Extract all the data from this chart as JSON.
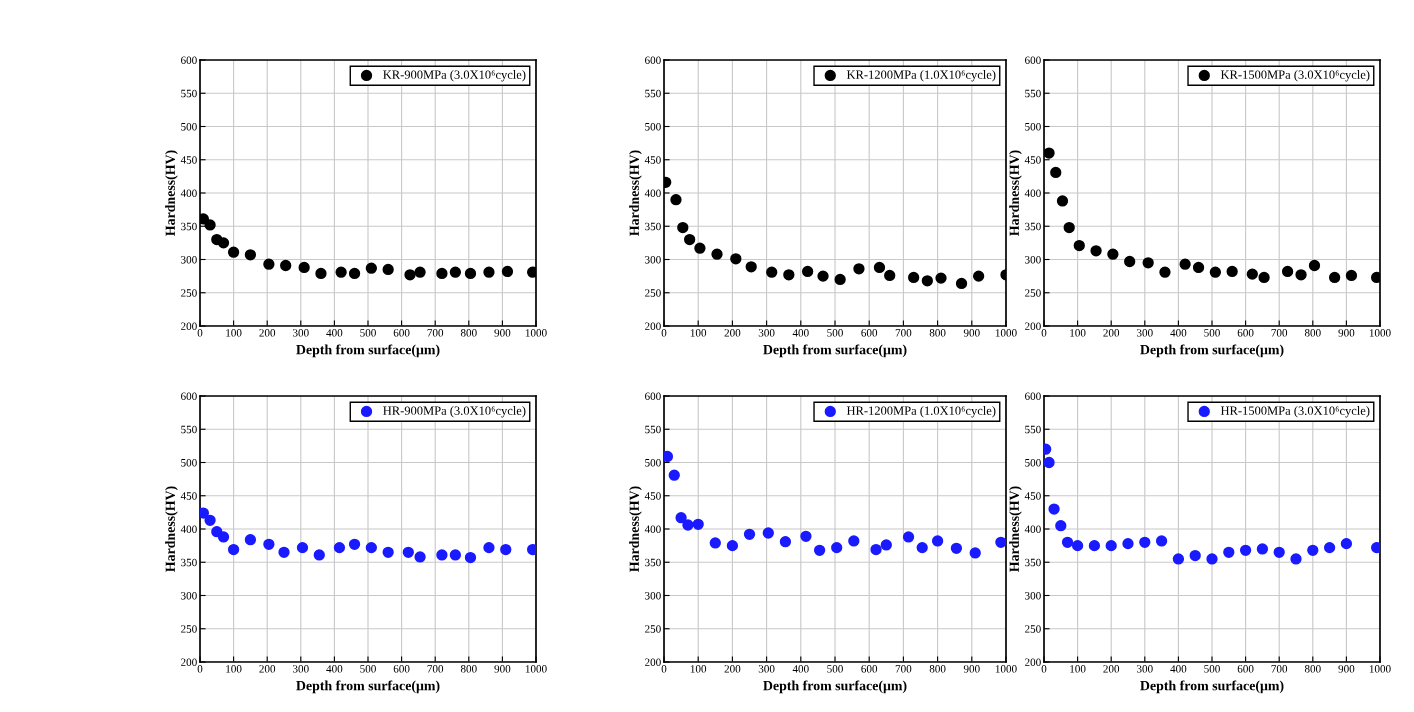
{
  "chart_data": [
    {
      "type": "scatter",
      "xlabel": "Depth from surface(μm)",
      "ylabel": "Hardness(HV)",
      "xlim": [
        0,
        1000
      ],
      "xticks": [
        0,
        100,
        200,
        300,
        400,
        500,
        600,
        700,
        800,
        900,
        1000
      ],
      "ylim": [
        200,
        600
      ],
      "yticks": [
        200,
        250,
        300,
        350,
        400,
        450,
        500,
        550,
        600
      ],
      "grid": true,
      "legend": "top right",
      "marker": "circle",
      "series": [
        {
          "name": "KR-900MPa (3.0X10⁶cycle)",
          "color": "#000000",
          "x": [
            10,
            30,
            50,
            70,
            100,
            150,
            205,
            255,
            310,
            360,
            420,
            460,
            510,
            560,
            625,
            655,
            720,
            760,
            805,
            860,
            915,
            990
          ],
          "values": [
            361,
            352,
            330,
            325,
            311,
            307,
            293,
            291,
            288,
            279,
            281,
            279,
            287,
            285,
            277,
            281,
            279,
            281,
            279,
            281,
            282,
            281
          ]
        }
      ]
    },
    {
      "type": "scatter",
      "xlabel": "Depth from surface(μm)",
      "ylabel": "Hardness(HV)",
      "xlim": [
        0,
        1000
      ],
      "xticks": [
        0,
        100,
        200,
        300,
        400,
        500,
        600,
        700,
        800,
        900,
        1000
      ],
      "ylim": [
        200,
        600
      ],
      "yticks": [
        200,
        250,
        300,
        350,
        400,
        450,
        500,
        550,
        600
      ],
      "grid": true,
      "legend": "top right",
      "marker": "circle",
      "series": [
        {
          "name": "KR-1200MPa (1.0X10⁶cycle)",
          "color": "#000000",
          "x": [
            5,
            35,
            55,
            75,
            105,
            155,
            210,
            255,
            315,
            365,
            420,
            465,
            515,
            570,
            630,
            660,
            730,
            770,
            810,
            870,
            920,
            1000
          ],
          "values": [
            416,
            390,
            348,
            330,
            317,
            308,
            301,
            289,
            281,
            277,
            282,
            275,
            270,
            286,
            288,
            276,
            273,
            268,
            272,
            264,
            275,
            277
          ]
        }
      ]
    },
    {
      "type": "scatter",
      "xlabel": "Depth from surface(μm)",
      "ylabel": "Hardness(HV)",
      "xlim": [
        0,
        1000
      ],
      "xticks": [
        0,
        100,
        200,
        300,
        400,
        500,
        600,
        700,
        800,
        900,
        1000
      ],
      "ylim": [
        200,
        600
      ],
      "yticks": [
        200,
        250,
        300,
        350,
        400,
        450,
        500,
        550,
        600
      ],
      "grid": true,
      "legend": "top right",
      "marker": "circle",
      "series": [
        {
          "name": "KR-1500MPa (3.0X10⁶cycle)",
          "color": "#000000",
          "x": [
            15,
            35,
            55,
            75,
            105,
            155,
            205,
            255,
            310,
            360,
            420,
            460,
            510,
            560,
            620,
            655,
            725,
            765,
            805,
            865,
            915,
            990
          ],
          "values": [
            460,
            431,
            388,
            348,
            321,
            313,
            308,
            297,
            295,
            281,
            293,
            288,
            281,
            282,
            278,
            273,
            282,
            277,
            291,
            273,
            276,
            273
          ]
        }
      ]
    },
    {
      "type": "scatter",
      "xlabel": "Depth from surface(μm)",
      "ylabel": "Hardness(HV)",
      "xlim": [
        0,
        1000
      ],
      "xticks": [
        0,
        100,
        200,
        300,
        400,
        500,
        600,
        700,
        800,
        900,
        1000
      ],
      "ylim": [
        200,
        600
      ],
      "yticks": [
        200,
        250,
        300,
        350,
        400,
        450,
        500,
        550,
        600
      ],
      "grid": true,
      "legend": "top right",
      "marker": "circle",
      "series": [
        {
          "name": "HR-900MPa (3.0X10⁶cycle)",
          "color": "#1a1aff",
          "x": [
            10,
            30,
            50,
            70,
            100,
            150,
            205,
            250,
            305,
            355,
            415,
            460,
            510,
            560,
            620,
            655,
            720,
            760,
            805,
            860,
            910,
            990
          ],
          "values": [
            424,
            413,
            396,
            388,
            369,
            384,
            377,
            365,
            372,
            361,
            372,
            377,
            372,
            365,
            365,
            358,
            361,
            361,
            357,
            372,
            369,
            369
          ]
        }
      ]
    },
    {
      "type": "scatter",
      "xlabel": "Depth from surface(μm)",
      "ylabel": "Hardness(HV)",
      "xlim": [
        0,
        1000
      ],
      "xticks": [
        0,
        100,
        200,
        300,
        400,
        500,
        600,
        700,
        800,
        900,
        1000
      ],
      "ylim": [
        200,
        600
      ],
      "yticks": [
        200,
        250,
        300,
        350,
        400,
        450,
        500,
        550,
        600
      ],
      "grid": true,
      "legend": "top right",
      "marker": "circle",
      "series": [
        {
          "name": "HR-1200MPa (1.0X10⁶cycle)",
          "color": "#1a1aff",
          "x": [
            10,
            30,
            50,
            70,
            100,
            150,
            200,
            250,
            305,
            355,
            415,
            455,
            505,
            555,
            620,
            650,
            715,
            755,
            800,
            855,
            910,
            985
          ],
          "values": [
            509,
            481,
            417,
            406,
            407,
            379,
            375,
            392,
            394,
            381,
            389,
            368,
            372,
            382,
            369,
            376,
            388,
            372,
            382,
            371,
            364,
            380
          ]
        }
      ]
    },
    {
      "type": "scatter",
      "xlabel": "Depth from surface(μm)",
      "ylabel": "Hardness(HV)",
      "xlim": [
        0,
        1000
      ],
      "xticks": [
        0,
        100,
        200,
        300,
        400,
        500,
        600,
        700,
        800,
        900,
        1000
      ],
      "ylim": [
        200,
        600
      ],
      "yticks": [
        200,
        250,
        300,
        350,
        400,
        450,
        500,
        550,
        600
      ],
      "grid": true,
      "legend": "top right",
      "marker": "circle",
      "series": [
        {
          "name": "HR-1500MPa (3.0X10⁶cycle)",
          "color": "#1a1aff",
          "x": [
            5,
            15,
            30,
            50,
            70,
            100,
            150,
            200,
            250,
            300,
            350,
            400,
            450,
            500,
            550,
            600,
            650,
            700,
            750,
            800,
            850,
            900,
            990
          ],
          "values": [
            520,
            500,
            430,
            405,
            380,
            375,
            375,
            375,
            378,
            380,
            382,
            355,
            360,
            355,
            365,
            368,
            370,
            365,
            355,
            368,
            372,
            378,
            372
          ]
        }
      ]
    }
  ]
}
